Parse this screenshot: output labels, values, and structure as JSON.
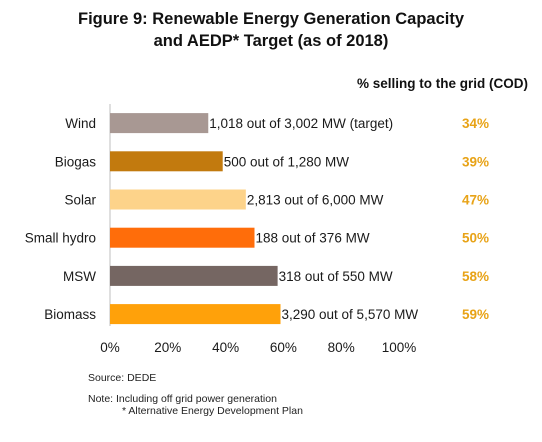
{
  "title": {
    "line1": "Figure 9: Renewable Energy Generation Capacity",
    "line2": "and AEDP* Target (as of 2018)"
  },
  "column_header": "% selling to the grid (COD)",
  "colors": {
    "pct_label": "#e8a317",
    "axis": "#bfbfbf",
    "text": "#1a1a1a"
  },
  "notes": {
    "source": "Source: DEDE",
    "note": "Note: Including off grid power generation",
    "footnote": "* Alternative Energy Development Plan"
  },
  "chart_data": {
    "type": "bar",
    "orientation": "horizontal",
    "categories": [
      "Wind",
      "Biogas",
      "Solar",
      "Small hydro",
      "MSW",
      "Biomass"
    ],
    "values": [
      34,
      39,
      47,
      50,
      58,
      59
    ],
    "bar_colors": [
      "#a89893",
      "#c27a0e",
      "#fdd38a",
      "#ff6d0a",
      "#756662",
      "#ffa10a"
    ],
    "data_labels": [
      "1,018 out of 3,002 MW (target)",
      "500 out of 1,280 MW",
      "2,813 out of 6,000 MW",
      "188 out of 376 MW",
      "318 out of 550 MW",
      "3,290 out of 5,570 MW"
    ],
    "pct_labels": [
      "34%",
      "39%",
      "47%",
      "50%",
      "58%",
      "59%"
    ],
    "xlim": [
      0,
      100
    ],
    "xticks": [
      0,
      20,
      40,
      60,
      80,
      100
    ],
    "xtick_labels": [
      "0%",
      "20%",
      "40%",
      "60%",
      "80%",
      "100%"
    ],
    "grid": false,
    "legend": "none"
  }
}
